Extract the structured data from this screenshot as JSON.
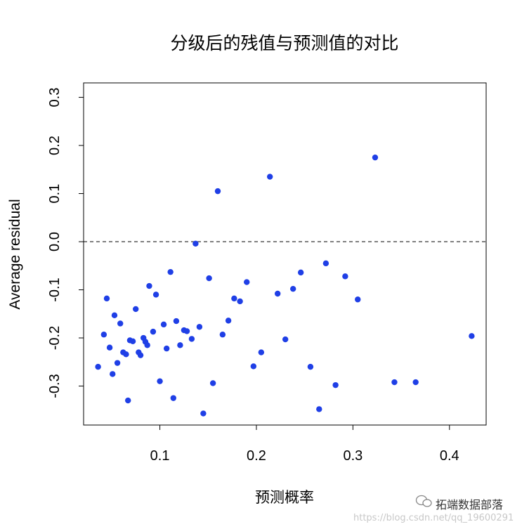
{
  "chart_data": {
    "type": "scatter",
    "title": "分级后的残值与预测值的对比",
    "xlabel": "预测概率",
    "ylabel": "Average residual",
    "xlim": [
      0.021,
      0.438
    ],
    "ylim": [
      -0.381,
      0.33
    ],
    "xticks": [
      0.1,
      0.2,
      0.3,
      0.4
    ],
    "xtick_labels": [
      "0.1",
      "0.2",
      "0.3",
      "0.4"
    ],
    "yticks": [
      -0.3,
      -0.2,
      -0.1,
      0.0,
      0.1,
      0.2,
      0.3
    ],
    "ytick_labels": [
      "-0.3",
      "-0.2",
      "-0.1",
      "0.0",
      "0.1",
      "0.2",
      "0.3"
    ],
    "reference_line": {
      "y": 0,
      "style": "dashed"
    },
    "point_color": "#1f3fe6",
    "points": [
      [
        0.036,
        -0.26
      ],
      [
        0.042,
        -0.193
      ],
      [
        0.045,
        -0.118
      ],
      [
        0.048,
        -0.22
      ],
      [
        0.051,
        -0.275
      ],
      [
        0.053,
        -0.153
      ],
      [
        0.056,
        -0.252
      ],
      [
        0.059,
        -0.17
      ],
      [
        0.062,
        -0.23
      ],
      [
        0.065,
        -0.234
      ],
      [
        0.067,
        -0.33
      ],
      [
        0.069,
        -0.205
      ],
      [
        0.072,
        -0.207
      ],
      [
        0.075,
        -0.14
      ],
      [
        0.078,
        -0.23
      ],
      [
        0.08,
        -0.236
      ],
      [
        0.083,
        -0.2
      ],
      [
        0.085,
        -0.208
      ],
      [
        0.087,
        -0.215
      ],
      [
        0.089,
        -0.092
      ],
      [
        0.093,
        -0.187
      ],
      [
        0.096,
        -0.11
      ],
      [
        0.1,
        -0.29
      ],
      [
        0.104,
        -0.172
      ],
      [
        0.107,
        -0.222
      ],
      [
        0.111,
        -0.063
      ],
      [
        0.114,
        -0.325
      ],
      [
        0.117,
        -0.165
      ],
      [
        0.121,
        -0.215
      ],
      [
        0.125,
        -0.184
      ],
      [
        0.128,
        -0.186
      ],
      [
        0.133,
        -0.202
      ],
      [
        0.137,
        -0.004
      ],
      [
        0.141,
        -0.177
      ],
      [
        0.145,
        -0.357
      ],
      [
        0.151,
        -0.076
      ],
      [
        0.155,
        -0.294
      ],
      [
        0.16,
        0.105
      ],
      [
        0.165,
        -0.193
      ],
      [
        0.171,
        -0.164
      ],
      [
        0.177,
        -0.118
      ],
      [
        0.183,
        -0.124
      ],
      [
        0.19,
        -0.084
      ],
      [
        0.197,
        -0.259
      ],
      [
        0.205,
        -0.23
      ],
      [
        0.214,
        0.135
      ],
      [
        0.222,
        -0.108
      ],
      [
        0.23,
        -0.203
      ],
      [
        0.238,
        -0.098
      ],
      [
        0.246,
        -0.064
      ],
      [
        0.256,
        -0.26
      ],
      [
        0.265,
        -0.348
      ],
      [
        0.272,
        -0.045
      ],
      [
        0.282,
        -0.298
      ],
      [
        0.292,
        -0.072
      ],
      [
        0.305,
        -0.12
      ],
      [
        0.323,
        0.175
      ],
      [
        0.343,
        -0.292
      ],
      [
        0.365,
        -0.292
      ],
      [
        0.423,
        -0.196
      ]
    ]
  },
  "watermark": {
    "brand": "拓端数据部落",
    "url": "https://blog.csdn.net/qq_19600291"
  }
}
